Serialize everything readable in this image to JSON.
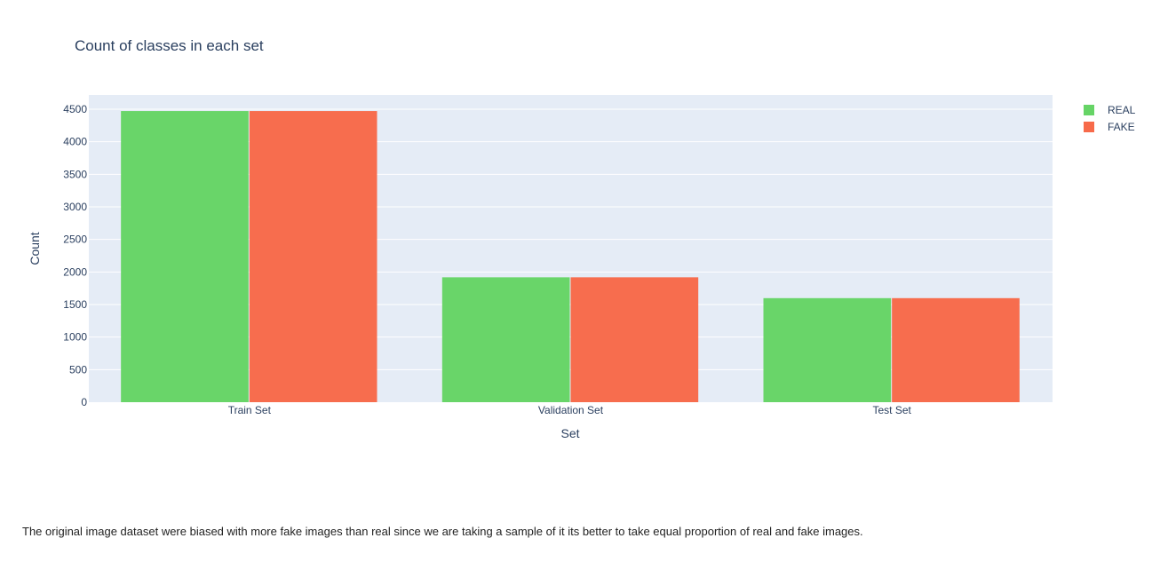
{
  "chart_data": {
    "type": "bar",
    "title": "Count of classes in each set",
    "xlabel": "Set",
    "ylabel": "Count",
    "categories": [
      "Train Set",
      "Validation Set",
      "Test Set"
    ],
    "series": [
      {
        "name": "REAL",
        "values": [
          4472,
          1918,
          1598
        ],
        "color": "#66d466"
      },
      {
        "name": "FAKE",
        "values": [
          4472,
          1918,
          1598
        ],
        "color": "#f76a4a"
      }
    ],
    "ylim": [
      0,
      4750
    ],
    "yticks": [
      0,
      500,
      1000,
      1500,
      2000,
      2500,
      3000,
      3500,
      4000,
      4500
    ],
    "grid": true,
    "legend": "top-right"
  },
  "note": "The original image dataset were biased with more fake images than real since we are taking a sample of it its better to take equal proportion of real and fake images."
}
